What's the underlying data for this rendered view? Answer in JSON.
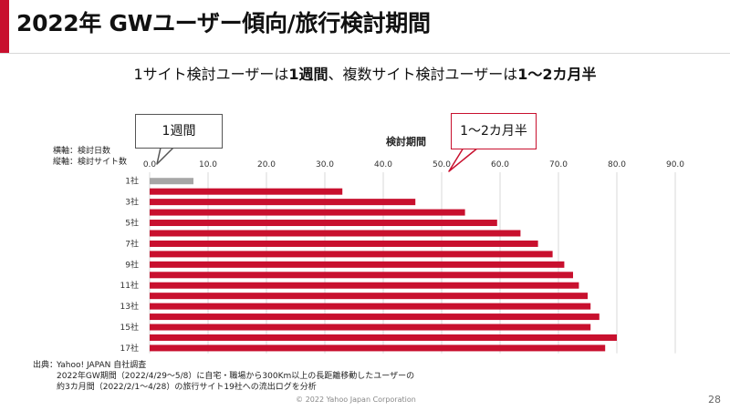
{
  "header": {
    "title": "2022年 GWユーザー傾向/旅行検討期間",
    "accent_color": "#c8102e"
  },
  "subtitle": {
    "part1": "1サイト検討ユーザーは",
    "part2": "1週間",
    "part3": "、複数サイト検討ユーザーは",
    "part4": "1～2カ月半"
  },
  "callouts": {
    "left": "1週間",
    "right": "1～2カ月半"
  },
  "axis_legend": {
    "line1": "横軸：検討日数",
    "line2": "縦軸：検討サイト数"
  },
  "chart_data": {
    "type": "bar",
    "orientation": "horizontal",
    "title": "検討期間",
    "x_ticks": [
      "0.0",
      "10.0",
      "20.0",
      "30.0",
      "40.0",
      "50.0",
      "60.0",
      "70.0",
      "80.0",
      "90.0"
    ],
    "xlim": [
      0,
      90
    ],
    "grid": true,
    "categories": [
      "1社",
      "2社",
      "3社",
      "4社",
      "5社",
      "6社",
      "7社",
      "8社",
      "9社",
      "10社",
      "11社",
      "12社",
      "13社",
      "14社",
      "15社",
      "16社",
      "17社"
    ],
    "category_labels_shown": [
      "1社",
      "",
      "3社",
      "",
      "5社",
      "",
      "7社",
      "",
      "9社",
      "",
      "11社",
      "",
      "13社",
      "",
      "15社",
      "",
      "17社"
    ],
    "values": [
      7.5,
      33.0,
      45.5,
      54.0,
      59.5,
      63.5,
      66.5,
      69.0,
      71.0,
      72.5,
      73.5,
      75.0,
      75.5,
      77.0,
      75.5,
      80.0,
      78.0
    ],
    "colors": {
      "first": "#a6a6a6",
      "others": "#c8102e"
    }
  },
  "footer": {
    "source_label": "出典：",
    "source_line1": "Yahoo! JAPAN 自社調査",
    "source_line2": "2022年GW期間（2022/4/29～5/8）に自宅・職場から300Km以上の長距離移動したユーザーの",
    "source_line3": "約3カ月間（2022/2/1～4/28）の旅行サイト19社への流出ログを分析",
    "copyright": "© 2022 Yahoo Japan Corporation",
    "page_number": "28"
  }
}
